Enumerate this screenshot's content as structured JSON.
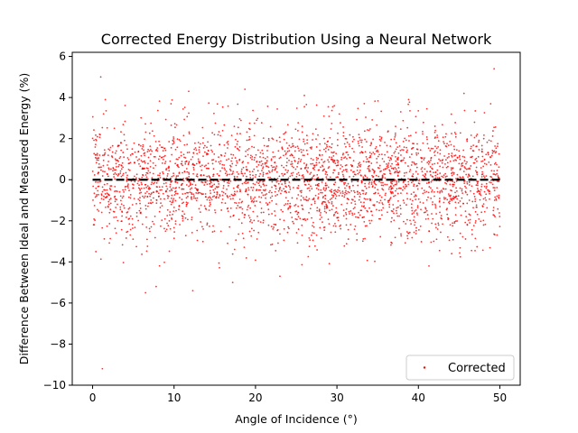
{
  "chart_data": {
    "type": "scatter",
    "title": "Corrected Energy Distribution Using a Neural Network",
    "xlabel": "Angle of Incidence (°)",
    "ylabel": "Difference Between Ideal and Measured Energy (%)",
    "xlim": [
      -2.5,
      52.5
    ],
    "ylim": [
      -10,
      6.2
    ],
    "xticks": [
      0,
      10,
      20,
      30,
      40,
      50
    ],
    "yticks": [
      -10,
      -8,
      -6,
      -4,
      -2,
      0,
      2,
      4,
      6
    ],
    "xtick_labels": [
      "0",
      "10",
      "20",
      "30",
      "40",
      "50"
    ],
    "ytick_labels": [
      "−10",
      "−8",
      "−6",
      "−4",
      "−2",
      "0",
      "2",
      "4",
      "6"
    ],
    "series": [
      {
        "name": "Corrected",
        "color": "#ff0000",
        "marker": "dot",
        "n_points": 3000,
        "x_range": [
          0,
          50
        ],
        "distribution": "normal",
        "mean": 0,
        "std": 1.4,
        "outliers": [
          {
            "x": 1.0,
            "y": 5.0
          },
          {
            "x": 1.2,
            "y": -9.2
          },
          {
            "x": 0.4,
            "y": -3.5
          },
          {
            "x": 6.5,
            "y": -5.5
          },
          {
            "x": 7.8,
            "y": -5.2
          },
          {
            "x": 12.3,
            "y": -5.4
          },
          {
            "x": 17.2,
            "y": -5.0
          },
          {
            "x": 18.7,
            "y": 4.4
          },
          {
            "x": 11.8,
            "y": 4.3
          },
          {
            "x": 26.0,
            "y": 4.1
          },
          {
            "x": 38.8,
            "y": 3.9
          },
          {
            "x": 45.6,
            "y": 4.2
          },
          {
            "x": 49.3,
            "y": 5.4
          },
          {
            "x": 23.0,
            "y": -4.7
          },
          {
            "x": 41.3,
            "y": -4.2
          }
        ]
      }
    ],
    "reference_line": {
      "y": 0,
      "x_range": [
        0,
        50
      ],
      "style": "dashed",
      "color": "#000000"
    },
    "legend": {
      "position": "bottom-right",
      "entries": [
        "Corrected"
      ]
    },
    "grid": false
  }
}
